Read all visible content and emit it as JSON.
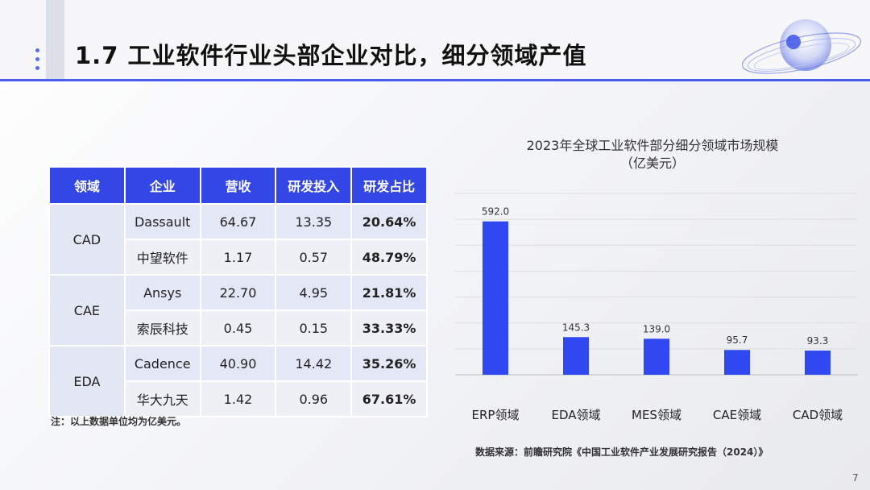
{
  "page": {
    "title": "1.7  工业软件行业头部企业对比，细分领域产值",
    "note": "注：以上数据单位均为亿美元。",
    "source": "数据来源：前瞻研究院《中国工业软件产业发展研究报告（2024）》",
    "page_number": "7"
  },
  "table": {
    "headers": [
      "领域",
      "企业",
      "营收",
      "研发投入",
      "研发占比"
    ],
    "groups": [
      {
        "domain": "CAD",
        "rows": [
          {
            "company": "Dassault",
            "revenue": "64.67",
            "rd": "13.35",
            "ratio": "20.64%"
          },
          {
            "company": "中望软件",
            "revenue": "1.17",
            "rd": "0.57",
            "ratio": "48.79%"
          }
        ]
      },
      {
        "domain": "CAE",
        "rows": [
          {
            "company": "Ansys",
            "revenue": "22.70",
            "rd": "4.95",
            "ratio": "21.81%"
          },
          {
            "company": "索辰科技",
            "revenue": "0.45",
            "rd": "0.15",
            "ratio": "33.33%"
          }
        ]
      },
      {
        "domain": "EDA",
        "rows": [
          {
            "company": "Cadence",
            "revenue": "40.90",
            "rd": "14.42",
            "ratio": "35.26%"
          },
          {
            "company": "华大九天",
            "revenue": "1.42",
            "rd": "0.96",
            "ratio": "67.61%"
          }
        ]
      }
    ]
  },
  "chart_data": {
    "type": "bar",
    "title": "2023年全球工业软件部分细分领域市场规模",
    "subtitle": "（亿美元）",
    "categories": [
      "ERP领域",
      "EDA领域",
      "MES领域",
      "CAE领域",
      "CAD领域"
    ],
    "values": [
      592.0,
      145.3,
      139.0,
      95.7,
      93.3
    ],
    "data_labels": [
      "592.0",
      "145.3",
      "139.0",
      "95.7",
      "93.3"
    ],
    "ylim": [
      0,
      700
    ],
    "grid": true,
    "bar_color": "#2f48f0"
  },
  "colors": {
    "accent": "#4a5cf0",
    "table_header": "#3347e6"
  }
}
